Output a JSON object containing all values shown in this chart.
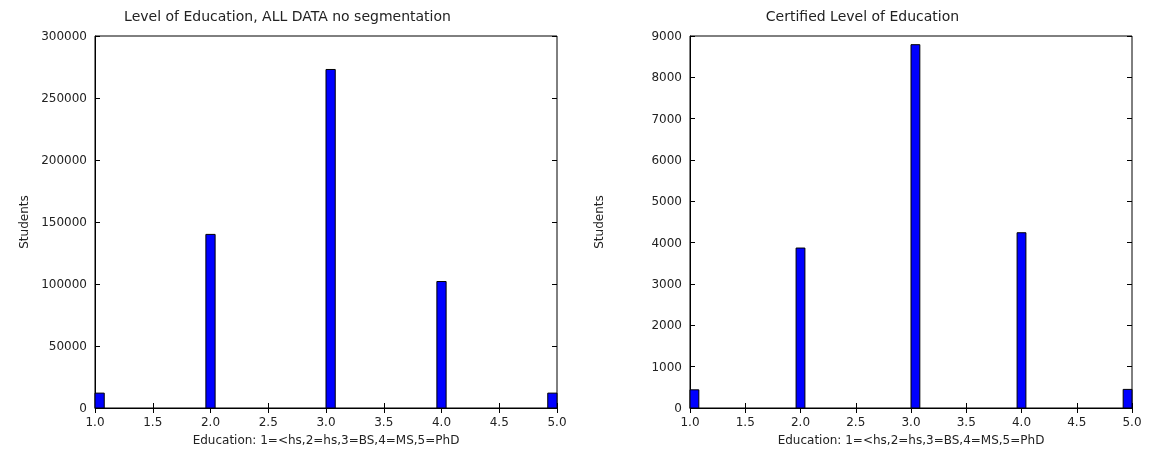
{
  "chart_data": [
    {
      "type": "histogram",
      "title": "Level of Education, ALL DATA no segmentation",
      "xlabel": "Education: 1=<hs,2=hs,3=BS,4=MS,5=PhD",
      "ylabel": "Students",
      "color": "#0000ff",
      "bins": [
        1.0,
        1.08,
        1.16,
        1.24,
        1.32,
        1.4,
        1.48,
        1.56,
        1.64,
        1.72,
        1.8,
        1.88,
        1.96,
        2.04,
        2.12,
        2.2,
        2.28,
        2.36,
        2.44,
        2.52,
        2.6,
        2.68,
        2.76,
        2.84,
        2.92,
        3.0,
        3.08,
        3.16,
        3.24,
        3.32,
        3.4,
        3.48,
        3.56,
        3.64,
        3.72,
        3.8,
        3.88,
        3.96,
        4.04,
        4.12,
        4.2,
        4.28,
        4.36,
        4.44,
        4.52,
        4.6,
        4.68,
        4.76,
        4.84,
        4.92,
        5.0
      ],
      "values": [
        12000,
        0,
        0,
        0,
        0,
        0,
        0,
        0,
        0,
        0,
        0,
        0,
        140000,
        0,
        0,
        0,
        0,
        0,
        0,
        0,
        0,
        0,
        0,
        0,
        0,
        273000,
        0,
        0,
        0,
        0,
        0,
        0,
        0,
        0,
        0,
        0,
        0,
        102000,
        0,
        0,
        0,
        0,
        0,
        0,
        0,
        0,
        0,
        0,
        0,
        12000
      ],
      "xlim": [
        1.0,
        5.0
      ],
      "xticks": [
        {
          "value": 1.0,
          "label": "1.0"
        },
        {
          "value": 1.5,
          "label": "1.5"
        },
        {
          "value": 2.0,
          "label": "2.0"
        },
        {
          "value": 2.5,
          "label": "2.5"
        },
        {
          "value": 3.0,
          "label": "3.0"
        },
        {
          "value": 3.5,
          "label": "3.5"
        },
        {
          "value": 4.0,
          "label": "4.0"
        },
        {
          "value": 4.5,
          "label": "4.5"
        },
        {
          "value": 5.0,
          "label": "5.0"
        }
      ],
      "ylim": [
        0,
        300000
      ],
      "yticks": [
        0,
        50000,
        100000,
        150000,
        200000,
        250000,
        300000
      ],
      "grid": false
    },
    {
      "type": "histogram",
      "title": "Certified Level of Education",
      "xlabel": "Education: 1=<hs,2=hs,3=BS,4=MS,5=PhD",
      "ylabel": "Students",
      "color": "#0000ff",
      "bins": [
        1.0,
        1.08,
        1.16,
        1.24,
        1.32,
        1.4,
        1.48,
        1.56,
        1.64,
        1.72,
        1.8,
        1.88,
        1.96,
        2.04,
        2.12,
        2.2,
        2.28,
        2.36,
        2.44,
        2.52,
        2.6,
        2.68,
        2.76,
        2.84,
        2.92,
        3.0,
        3.08,
        3.16,
        3.24,
        3.32,
        3.4,
        3.48,
        3.56,
        3.64,
        3.72,
        3.8,
        3.88,
        3.96,
        4.04,
        4.12,
        4.2,
        4.28,
        4.36,
        4.44,
        4.52,
        4.6,
        4.68,
        4.76,
        4.84,
        4.92,
        5.0
      ],
      "values": [
        440,
        0,
        0,
        0,
        0,
        0,
        0,
        0,
        0,
        0,
        0,
        0,
        3870,
        0,
        0,
        0,
        0,
        0,
        0,
        0,
        0,
        0,
        0,
        0,
        0,
        8790,
        0,
        0,
        0,
        0,
        0,
        0,
        0,
        0,
        0,
        0,
        0,
        4240,
        0,
        0,
        0,
        0,
        0,
        0,
        0,
        0,
        0,
        0,
        0,
        450
      ],
      "xlim": [
        1.0,
        5.0
      ],
      "xticks": [
        {
          "value": 1.0,
          "label": "1.0"
        },
        {
          "value": 1.5,
          "label": "1.5"
        },
        {
          "value": 2.0,
          "label": "2.0"
        },
        {
          "value": 2.5,
          "label": "2.5"
        },
        {
          "value": 3.0,
          "label": "3.0"
        },
        {
          "value": 3.5,
          "label": "3.5"
        },
        {
          "value": 4.0,
          "label": "4.0"
        },
        {
          "value": 4.5,
          "label": "4.5"
        },
        {
          "value": 5.0,
          "label": "5.0"
        }
      ],
      "ylim": [
        0,
        9000
      ],
      "yticks": [
        0,
        1000,
        2000,
        3000,
        4000,
        5000,
        6000,
        7000,
        8000,
        9000
      ],
      "grid": false
    }
  ]
}
